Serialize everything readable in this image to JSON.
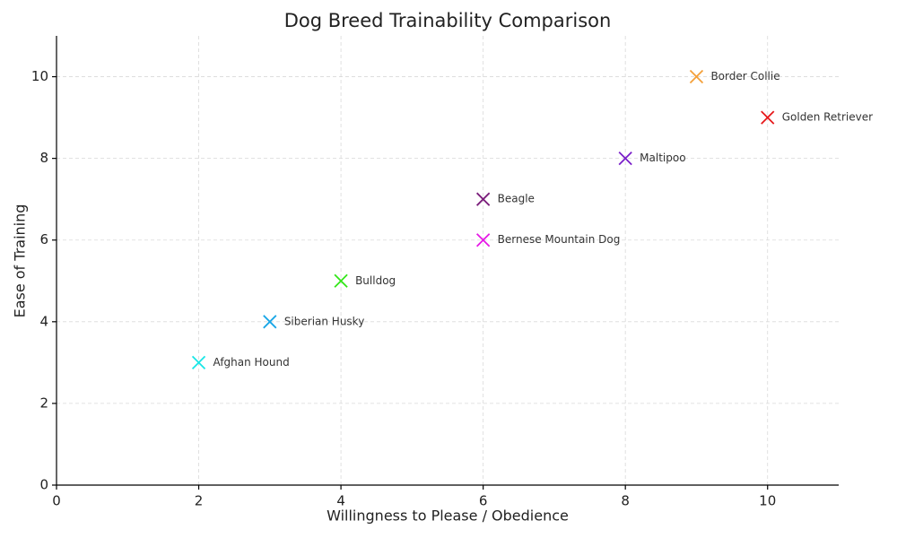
{
  "chart_data": {
    "type": "scatter",
    "title": "Dog Breed Trainability Comparison",
    "x_label": "Willingness to Please / Obedience",
    "y_label": "Ease of Training",
    "xlim": [
      0,
      11
    ],
    "ylim": [
      0,
      11
    ],
    "xticks": [
      0,
      2,
      4,
      6,
      8,
      10
    ],
    "yticks": [
      0,
      2,
      4,
      6,
      8,
      10
    ],
    "grid": true,
    "points": [
      {
        "name": "Golden Retriever",
        "x": 10,
        "y": 9,
        "color": "#e6191b"
      },
      {
        "name": "Border Collie",
        "x": 9,
        "y": 10,
        "color": "#f4a03a"
      },
      {
        "name": "Maltipoo",
        "x": 8,
        "y": 8,
        "color": "#7a1fc9"
      },
      {
        "name": "Beagle",
        "x": 6,
        "y": 7,
        "color": "#7b1f7b"
      },
      {
        "name": "Bernese Mountain Dog",
        "x": 6,
        "y": 6,
        "color": "#e619e6"
      },
      {
        "name": "Bulldog",
        "x": 4,
        "y": 5,
        "color": "#33e619"
      },
      {
        "name": "Siberian Husky",
        "x": 3,
        "y": 4,
        "color": "#19a6e6"
      },
      {
        "name": "Afghan Hound",
        "x": 2,
        "y": 3,
        "color": "#19e6e6"
      }
    ]
  }
}
